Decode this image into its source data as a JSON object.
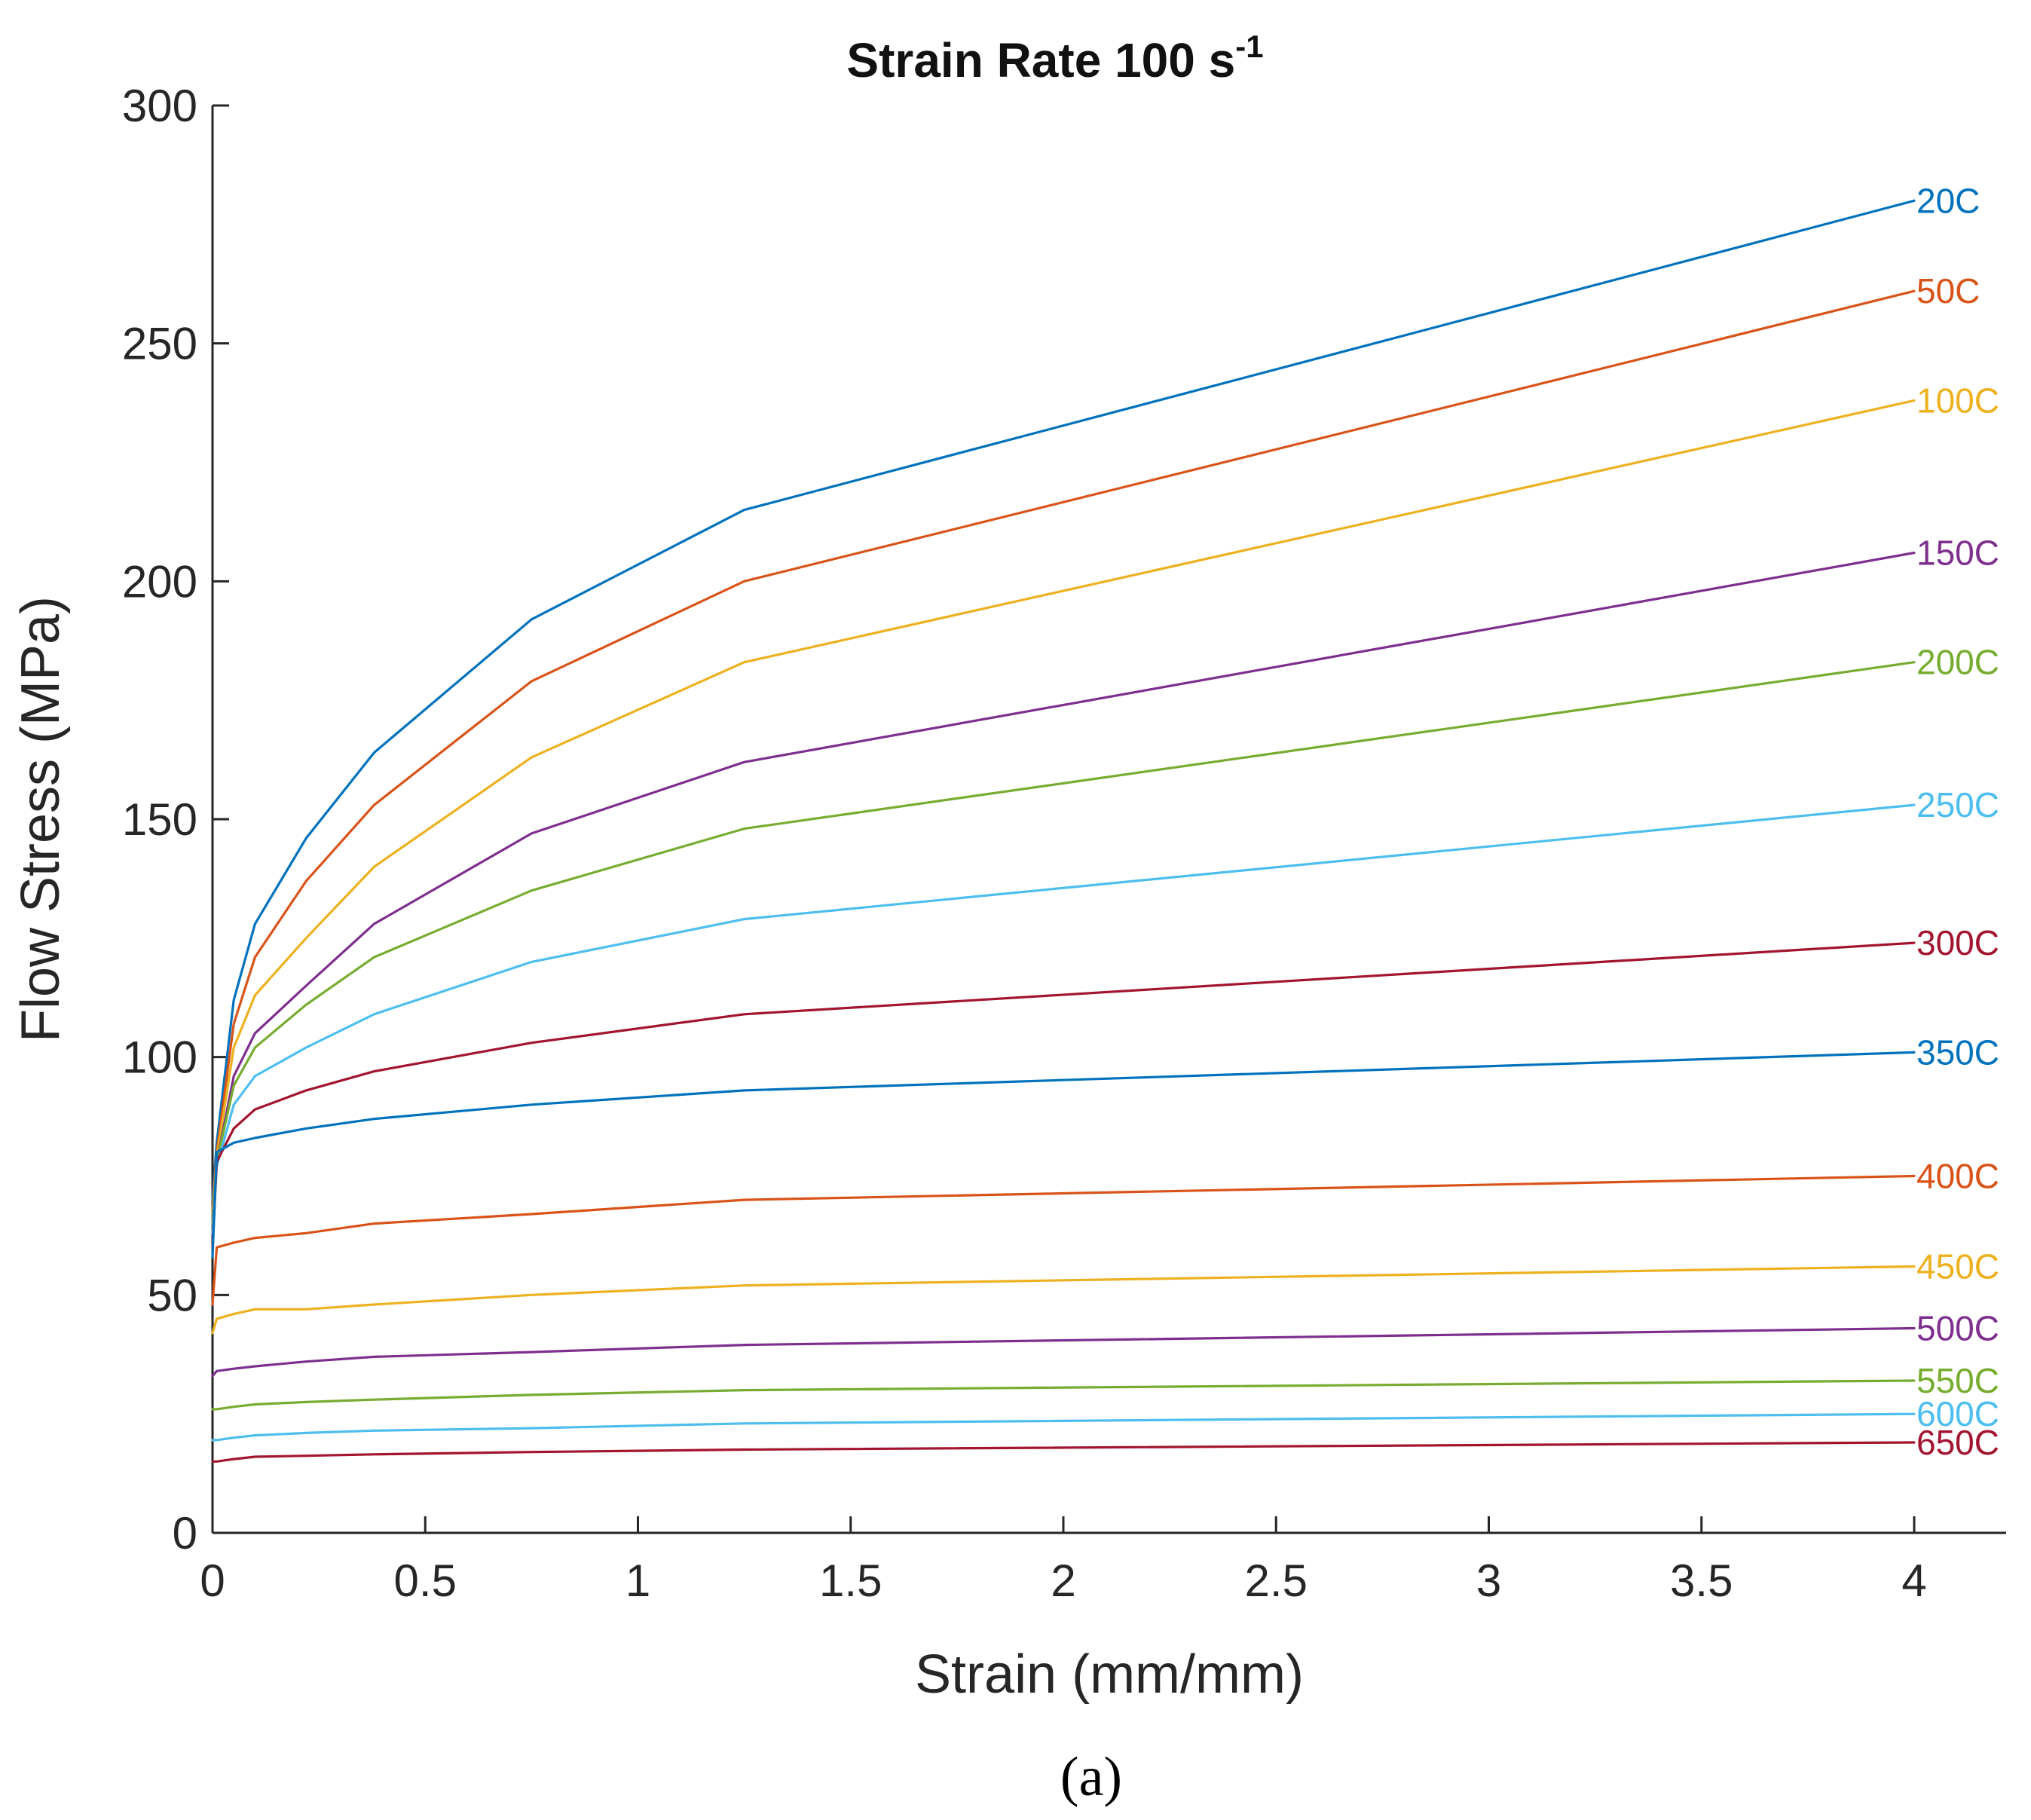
{
  "chart_data": {
    "type": "line",
    "title": "Strain Rate 100 s",
    "title_superscript": "-1",
    "xlabel": "Strain (mm/mm)",
    "ylabel": "Flow Stress (MPa)",
    "caption": "(a)",
    "xlim": [
      0,
      4
    ],
    "ylim": [
      0,
      300
    ],
    "xticks": [
      0,
      0.5,
      1,
      1.5,
      2,
      2.5,
      3,
      3.5,
      4
    ],
    "xtick_labels": [
      "0",
      "0.5",
      "1",
      "1.5",
      "2",
      "2.5",
      "3",
      "3.5",
      "4"
    ],
    "yticks": [
      0,
      50,
      100,
      150,
      200,
      250,
      300
    ],
    "ytick_labels": [
      "0",
      "50",
      "100",
      "150",
      "200",
      "250",
      "300"
    ],
    "grid": false,
    "x": [
      0,
      0.01,
      0.05,
      0.1,
      0.22,
      0.38,
      0.75,
      1.25,
      4.0
    ],
    "series": [
      {
        "name": "20C",
        "color": "#0072BD",
        "values": [
          70,
          82,
          112,
          128,
          146,
          164,
          192,
          215,
          280
        ]
      },
      {
        "name": "50C",
        "color": "#D95319",
        "values": [
          68,
          80,
          107,
          121,
          137,
          153,
          179,
          200,
          261
        ]
      },
      {
        "name": "100C",
        "color": "#EDB120",
        "values": [
          67,
          79,
          102,
          113,
          125,
          140,
          163,
          183,
          238
        ]
      },
      {
        "name": "150C",
        "color": "#7E2F8E",
        "values": [
          66,
          78,
          96,
          105,
          115,
          128,
          147,
          162,
          206
        ]
      },
      {
        "name": "200C",
        "color": "#77AC30",
        "values": [
          65,
          78,
          94,
          102,
          111,
          121,
          135,
          148,
          183
        ]
      },
      {
        "name": "250C",
        "color": "#4DBEEE",
        "values": [
          63,
          77,
          90,
          96,
          102,
          109,
          120,
          129,
          153
        ]
      },
      {
        "name": "300C",
        "color": "#A2142F",
        "values": [
          60,
          78,
          85,
          89,
          93,
          97,
          103,
          109,
          124
        ]
      },
      {
        "name": "350C",
        "color": "#0072BD",
        "values": [
          58,
          80,
          82,
          83,
          85,
          87,
          90,
          93,
          101
        ]
      },
      {
        "name": "400C",
        "color": "#D95319",
        "values": [
          48,
          60,
          61,
          62,
          63,
          65,
          67,
          70,
          75
        ]
      },
      {
        "name": "450C",
        "color": "#EDB120",
        "values": [
          42,
          45,
          46,
          47,
          47,
          48,
          50,
          52,
          56
        ]
      },
      {
        "name": "500C",
        "color": "#7E2F8E",
        "values": [
          33,
          34,
          34.5,
          35,
          36,
          37,
          38,
          39.5,
          43
        ]
      },
      {
        "name": "550C",
        "color": "#77AC30",
        "values": [
          26,
          26,
          26.5,
          27,
          27.5,
          28,
          29,
          30,
          32
        ]
      },
      {
        "name": "600C",
        "color": "#4DBEEE",
        "values": [
          19.5,
          19.5,
          20,
          20.5,
          21,
          21.5,
          22,
          23,
          25
        ]
      },
      {
        "name": "650C",
        "color": "#A2142F",
        "values": [
          15,
          15,
          15.5,
          16,
          16.2,
          16.5,
          17,
          17.5,
          19
        ]
      }
    ]
  }
}
